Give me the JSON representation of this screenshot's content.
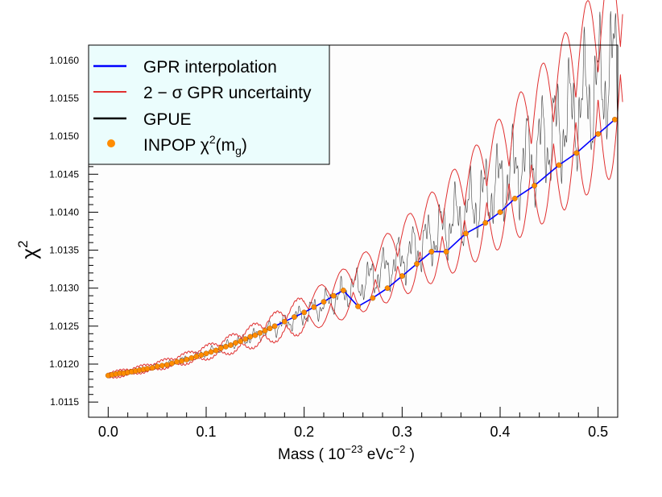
{
  "chart_data": {
    "type": "line",
    "xlim": [
      -0.02,
      0.52
    ],
    "ylim": [
      1.0113,
      1.0162
    ],
    "x_ticks": [
      0.0,
      0.1,
      0.2,
      0.3,
      0.4,
      0.5
    ],
    "x_tick_labels": [
      "0.0",
      "0.1",
      "0.2",
      "0.3",
      "0.4",
      "0.5"
    ],
    "y_ticks": [
      1.0115,
      1.012,
      1.0125,
      1.013,
      1.0135,
      1.014,
      1.0145,
      1.015,
      1.0155,
      1.016
    ],
    "y_tick_labels": [
      "1.0115",
      "1.0120",
      "1.0125",
      "1.0130",
      "1.0135",
      "1.0140",
      "1.0145",
      "1.0150",
      "1.0155",
      "1.0160"
    ],
    "xlabel": {
      "prefix": "Mass ( 10",
      "exp1": "−23",
      "mid": " eVc",
      "exp2": "−2",
      "suffix": " )"
    },
    "ylabel": {
      "base": "χ",
      "exp": "2"
    },
    "legend": {
      "position": "top-left",
      "entries": [
        {
          "label": "GPR interpolation",
          "color": "#0000ff"
        },
        {
          "label": "2 − σ GPR uncertainty",
          "color": "#e03030"
        },
        {
          "label": "GPUE",
          "color": "#000000"
        },
        {
          "label_parts": [
            "INPOP χ",
            "2",
            "(m",
            "g",
            ")"
          ],
          "color": "#ff8c00"
        }
      ]
    },
    "colors": {
      "gpr": "#0000ff",
      "uncertainty": "#e03030",
      "gpue": "#000000",
      "inpop": "#ff8c00",
      "legend_bg": "#ebfdfd",
      "plot_bg": "#fdfdfd"
    },
    "model": {
      "chi2": "1.01185 + 0.0021*m + 0.0088*m^2 + 0.0045*m^3"
    },
    "series": [
      {
        "name": "GPR interpolation",
        "x": [
          0.0,
          0.05,
          0.1,
          0.15,
          0.2,
          0.25,
          0.3,
          0.35,
          0.4,
          0.45,
          0.5,
          0.52
        ],
        "y": [
          1.01185,
          1.01197,
          1.01215,
          1.01233,
          1.01264,
          1.01295,
          1.0133,
          1.0137,
          1.0141,
          1.01453,
          1.01502,
          1.0152
        ]
      },
      {
        "name": "INPOP",
        "x": [
          0.0,
          0.004,
          0.008,
          0.012,
          0.016,
          0.02,
          0.024,
          0.028,
          0.032,
          0.036,
          0.04,
          0.045,
          0.05,
          0.055,
          0.06,
          0.065,
          0.07,
          0.075,
          0.08,
          0.085,
          0.09,
          0.095,
          0.1,
          0.105,
          0.11,
          0.115,
          0.12,
          0.125,
          0.13,
          0.135,
          0.14,
          0.145,
          0.15,
          0.155,
          0.16,
          0.165,
          0.17,
          0.18,
          0.19,
          0.2,
          0.21,
          0.22,
          0.23,
          0.24,
          0.255,
          0.27,
          0.285,
          0.3,
          0.315,
          0.33,
          0.345,
          0.365,
          0.385,
          0.4,
          0.415,
          0.435,
          0.46,
          0.478,
          0.5,
          0.517
        ],
        "y": [
          1.01185,
          1.01186,
          1.01187,
          1.01188,
          1.01188,
          1.01189,
          1.0119,
          1.01191,
          1.01192,
          1.01193,
          1.01194,
          1.01195,
          1.01197,
          1.01198,
          1.01199,
          1.01201,
          1.01203,
          1.01204,
          1.01206,
          1.01208,
          1.0121,
          1.01212,
          1.01214,
          1.01216,
          1.01218,
          1.01221,
          1.01223,
          1.01225,
          1.01228,
          1.0123,
          1.01233,
          1.01236,
          1.01238,
          1.01241,
          1.01244,
          1.01247,
          1.0125,
          1.01256,
          1.01262,
          1.01268,
          1.01275,
          1.01282,
          1.0129,
          1.01297,
          1.01276,
          1.01287,
          1.013,
          1.01316,
          1.01332,
          1.01348,
          1.01348,
          1.01372,
          1.01386,
          1.014,
          1.01418,
          1.01435,
          1.01462,
          1.01478,
          1.01503,
          1.01522
        ]
      }
    ]
  }
}
